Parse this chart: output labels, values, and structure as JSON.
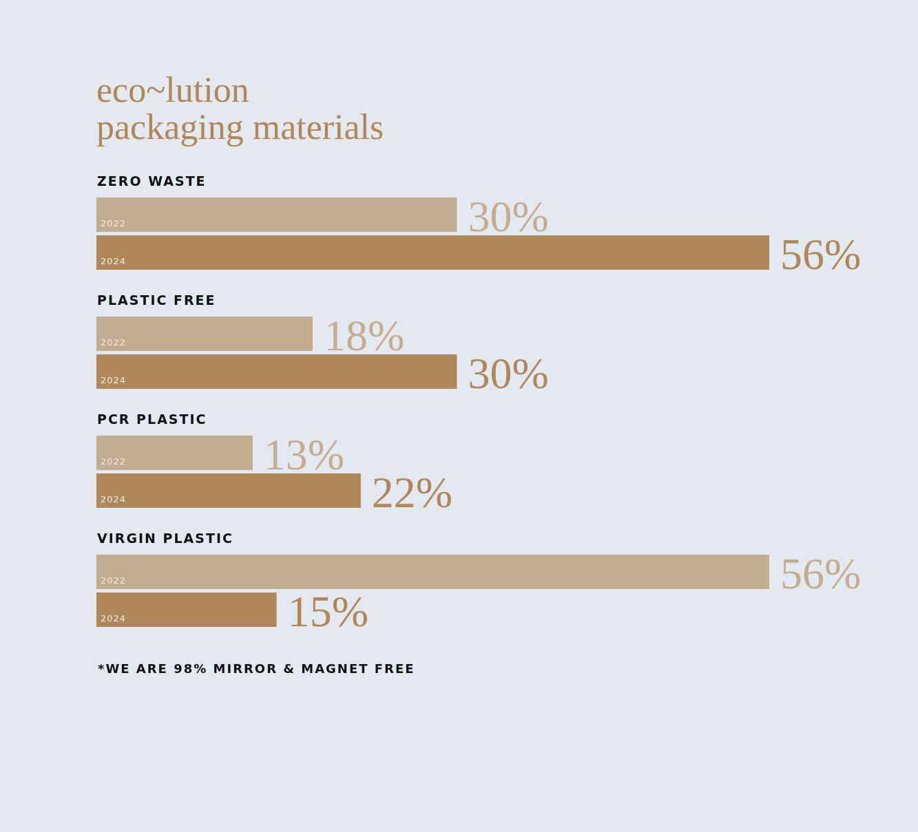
{
  "chart_data": {
    "type": "bar",
    "orientation": "horizontal",
    "title": "eco~lution\npackaging materials",
    "categories": [
      "ZERO WASTE",
      "PLASTIC FREE",
      "PCR PLASTIC",
      "VIRGIN PLASTIC"
    ],
    "series": [
      {
        "name": "2022",
        "color": "#c4ac91",
        "values": [
          30,
          18,
          13,
          56
        ],
        "value_labels": [
          "30%",
          "18%",
          "13%",
          "56%"
        ]
      },
      {
        "name": "2024",
        "color": "#ae875b",
        "values": [
          56,
          30,
          22,
          15
        ],
        "value_labels": [
          "56%",
          "30%",
          "22%",
          "15%"
        ]
      }
    ],
    "legend": false,
    "grid": false,
    "annotations": [
      "*WE ARE 98% MIRROR & MAGNET FREE"
    ]
  }
}
